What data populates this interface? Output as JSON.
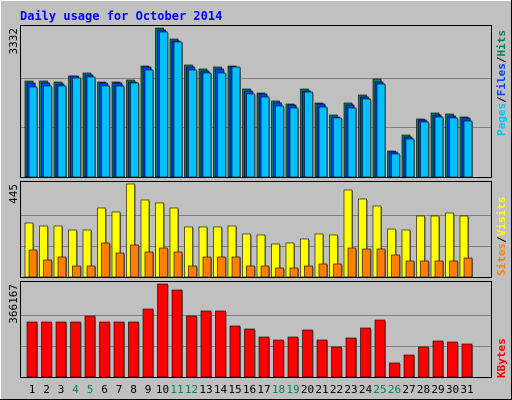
{
  "title": "Daily usage for October 2014",
  "colors": {
    "background": "#c0c0c0",
    "title": "#0000ff",
    "hits": "#00805c",
    "files": "#0040ff",
    "pages": "#00c0ff",
    "visits": "#ffff00",
    "sites": "#ff8000",
    "kbytes": "#ff0000",
    "weekend_label": "#00805c",
    "weekday_label": "#000000"
  },
  "legend": {
    "pages": "Pages",
    "files": "Files",
    "hits": "Hits",
    "sites": "Sites",
    "visits": "Visits",
    "kbytes": "KBytes",
    "separator": "/"
  },
  "chart_data": [
    {
      "type": "bar",
      "panel": "hits-files-pages",
      "categories": [
        "1",
        "2",
        "3",
        "4",
        "5",
        "6",
        "7",
        "8",
        "9",
        "10",
        "11",
        "12",
        "13",
        "14",
        "15",
        "16",
        "17",
        "18",
        "19",
        "20",
        "21",
        "22",
        "23",
        "24",
        "25",
        "26",
        "27",
        "28",
        "29",
        "30",
        "31"
      ],
      "weekend_days": [
        "4",
        "5",
        "11",
        "12",
        "18",
        "19",
        "25",
        "26"
      ],
      "ymax_label": "3332",
      "ylim": [
        0,
        3332
      ],
      "series": [
        {
          "name": "Hits",
          "values": [
            2145,
            2145,
            2120,
            2265,
            2330,
            2120,
            2120,
            2175,
            2485,
            3332,
            3075,
            2500,
            2410,
            2460,
            2490,
            1970,
            1875,
            1690,
            1640,
            1975,
            1650,
            1385,
            1650,
            1835,
            2200,
            580,
            950,
            1300,
            1425,
            1410,
            1345
          ]
        },
        {
          "name": "Files",
          "values": [
            2110,
            2110,
            2080,
            2250,
            2270,
            2100,
            2100,
            2130,
            2450,
            3285,
            3040,
            2450,
            2380,
            2415,
            2460,
            1930,
            1850,
            1650,
            1600,
            1930,
            1625,
            1350,
            1600,
            1800,
            2125,
            555,
            905,
            1270,
            1390,
            1365,
            1325
          ]
        },
        {
          "name": "Pages",
          "values": [
            2010,
            2040,
            2040,
            2210,
            2230,
            2040,
            2040,
            2100,
            2390,
            3240,
            3030,
            2400,
            2330,
            2330,
            2450,
            1860,
            1790,
            1590,
            1540,
            1905,
            1560,
            1310,
            1545,
            1750,
            2075,
            520,
            845,
            1230,
            1340,
            1330,
            1260
          ]
        }
      ]
    },
    {
      "type": "bar",
      "panel": "visits-sites",
      "categories": [
        "1",
        "2",
        "3",
        "4",
        "5",
        "6",
        "7",
        "8",
        "9",
        "10",
        "11",
        "12",
        "13",
        "14",
        "15",
        "16",
        "17",
        "18",
        "19",
        "20",
        "21",
        "22",
        "23",
        "24",
        "25",
        "26",
        "27",
        "28",
        "29",
        "30",
        "31"
      ],
      "ymax_label": "445",
      "ylim": [
        0,
        445
      ],
      "series": [
        {
          "name": "Visits",
          "values": [
            260,
            245,
            245,
            225,
            225,
            330,
            310,
            445,
            370,
            355,
            330,
            240,
            240,
            240,
            245,
            205,
            200,
            160,
            165,
            180,
            205,
            200,
            415,
            375,
            340,
            230,
            225,
            290,
            290,
            305,
            290
          ]
        },
        {
          "name": "Sites",
          "values": [
            130,
            80,
            95,
            55,
            55,
            165,
            115,
            155,
            120,
            140,
            120,
            55,
            95,
            95,
            95,
            55,
            55,
            45,
            45,
            55,
            60,
            60,
            140,
            135,
            135,
            105,
            75,
            75,
            75,
            75,
            90
          ]
        }
      ]
    },
    {
      "type": "bar",
      "panel": "kbytes",
      "categories": [
        "1",
        "2",
        "3",
        "4",
        "5",
        "6",
        "7",
        "8",
        "9",
        "10",
        "11",
        "12",
        "13",
        "14",
        "15",
        "16",
        "17",
        "18",
        "19",
        "20",
        "21",
        "22",
        "23",
        "24",
        "25",
        "26",
        "27",
        "28",
        "29",
        "30",
        "31"
      ],
      "ymax_label": "366167",
      "ylim": [
        0,
        366167
      ],
      "series": [
        {
          "name": "KBytes",
          "values": [
            218000,
            218000,
            218000,
            218000,
            240000,
            218000,
            218000,
            218000,
            266000,
            366167,
            344000,
            240000,
            258000,
            258000,
            200000,
            190000,
            158000,
            146000,
            158000,
            184000,
            144000,
            120000,
            154000,
            192000,
            226000,
            54000,
            86000,
            118000,
            140000,
            136000,
            130000
          ]
        }
      ]
    }
  ]
}
